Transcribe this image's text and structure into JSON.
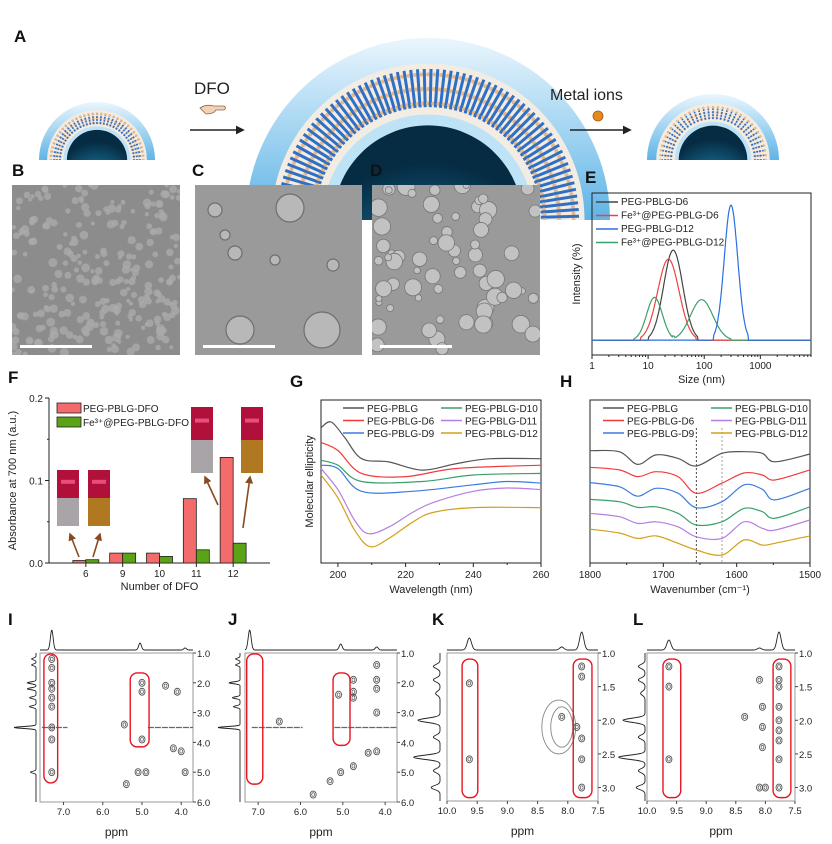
{
  "panel_labels": {
    "A": "A",
    "B": "B",
    "C": "C",
    "D": "D",
    "E": "E",
    "F": "F",
    "G": "G",
    "H": "H",
    "I": "I",
    "J": "J",
    "K": "K",
    "L": "L"
  },
  "schematic": {
    "dfo_label": "DFO",
    "metal_label": "Metal ions",
    "colors": {
      "shell": "#4aa3dc",
      "core": "#0b3d5c",
      "rods": "#2f6fc4",
      "metal_dot": "#e8891e"
    }
  },
  "chart_data": [
    {
      "panel": "E",
      "type": "line",
      "xscale": "log",
      "xlabel": "Size (nm)",
      "ylabel": "Intensity (%)",
      "xlim": [
        1,
        8000
      ],
      "ylim": [
        -3.3,
        32.7
      ],
      "xticks": [
        1,
        10,
        100,
        1000
      ],
      "xtick_labels": [
        "1",
        "10",
        "100",
        "1000"
      ],
      "legend_position": "top-left",
      "series": [
        {
          "name": "PEG-PBLG-D6",
          "color": "#444444",
          "peaks": [
            {
              "size_nm": 28,
              "intensity": 20,
              "width_decades": 0.17
            }
          ]
        },
        {
          "name": "Fe³⁺@PEG-PBLG-D6",
          "color": "#f04040",
          "peaks": [
            {
              "size_nm": 23,
              "intensity": 18,
              "width_decades": 0.19
            }
          ]
        },
        {
          "name": "PEG-PBLG-D12",
          "color": "#2a6fe0",
          "peaks": [
            {
              "size_nm": 300,
              "intensity": 30,
              "width_decades": 0.12
            }
          ]
        },
        {
          "name": "Fe³⁺@PEG-PBLG-D12",
          "color": "#3aa06a",
          "peaks": [
            {
              "size_nm": 13,
              "intensity": 9.5,
              "width_decades": 0.14
            },
            {
              "size_nm": 90,
              "intensity": 9,
              "width_decades": 0.2
            }
          ]
        }
      ]
    },
    {
      "panel": "F",
      "type": "bar",
      "xlabel": "Number of DFO",
      "ylabel": "Absorbance at 700 nm (a.u.)",
      "categories": [
        "6",
        "9",
        "10",
        "11",
        "12"
      ],
      "ylim": [
        0,
        0.2
      ],
      "yticks": [
        0.0,
        0.1,
        0.2
      ],
      "ytick_labels": [
        "0.0",
        "0.1",
        "0.2"
      ],
      "legend_position": "top-left",
      "series": [
        {
          "name": "PEG-PBLG-DFO",
          "color": "#f46b6b",
          "values": [
            0.003,
            0.012,
            0.012,
            0.078,
            0.128
          ]
        },
        {
          "name": "Fe³⁺@PEG-PBLG-DFO",
          "color": "#5aa317",
          "values": [
            0.004,
            0.012,
            0.008,
            0.016,
            0.024
          ]
        }
      ]
    },
    {
      "panel": "G",
      "type": "line",
      "xlabel": "Wavelength (nm)",
      "ylabel": "Molecular ellipticity",
      "xlim": [
        195,
        260
      ],
      "ylim": [
        0,
        100
      ],
      "xticks": [
        200,
        220,
        240,
        260
      ],
      "xtick_labels": [
        "200",
        "220",
        "240",
        "260"
      ],
      "legend_position": "top",
      "series": [
        {
          "name": "PEG-PBLG",
          "color": "#555555",
          "x": [
            195,
            198,
            202,
            207,
            215,
            225,
            235,
            245,
            260
          ],
          "y": [
            83,
            86.5,
            77,
            64,
            62,
            57,
            61,
            64,
            64
          ]
        },
        {
          "name": "PEG-PBLG-D6",
          "color": "#f03c3c",
          "x": [
            195,
            200,
            207,
            220,
            235,
            260
          ],
          "y": [
            74,
            69,
            55,
            53,
            58,
            60
          ]
        },
        {
          "name": "PEG-PBLG-D9",
          "color": "#3b7be0",
          "x": [
            195,
            200,
            207,
            222,
            240,
            250,
            260
          ],
          "y": [
            60,
            58,
            44,
            44,
            48,
            50,
            49
          ]
        },
        {
          "name": "PEG-PBLG-D10",
          "color": "#3aa06a",
          "x": [
            195,
            200,
            207,
            225,
            240,
            260
          ],
          "y": [
            63,
            60,
            50,
            50,
            54,
            55
          ]
        },
        {
          "name": "PEG-PBLG-D11",
          "color": "#b57fe0",
          "x": [
            195,
            200,
            205,
            209,
            215,
            222,
            228,
            240,
            250,
            260
          ],
          "y": [
            58,
            45,
            26,
            18,
            22,
            31,
            37,
            44,
            46,
            45
          ]
        },
        {
          "name": "PEG-PBLG-D12",
          "color": "#d4a017",
          "x": [
            195,
            200,
            205,
            209.5,
            215,
            222,
            228,
            240,
            260
          ],
          "y": [
            54,
            40,
            20,
            10,
            15,
            25,
            31,
            34,
            34
          ]
        }
      ]
    },
    {
      "panel": "H",
      "type": "line",
      "xlabel": "Wavenumber (cm⁻¹)",
      "ylabel": "",
      "xlim": [
        1800,
        1500
      ],
      "ylim": [
        0,
        100
      ],
      "xticks": [
        1800,
        1700,
        1600,
        1500
      ],
      "xtick_labels": [
        "1800",
        "1700",
        "1600",
        "1500"
      ],
      "reference_lines_x": [
        1655,
        1620
      ],
      "legend_position": "top",
      "series": [
        {
          "name": "PEG-PBLG",
          "color": "#555555",
          "x": [
            1800,
            1760,
            1735,
            1710,
            1680,
            1655,
            1620,
            1590,
            1565,
            1548,
            1500
          ],
          "y": [
            68.9,
            68.3,
            60.5,
            66.3,
            64.2,
            59.5,
            67.3,
            68.3,
            67.3,
            62.1,
            66.9
          ]
        },
        {
          "name": "PEG-PBLG-D6",
          "color": "#f03c3c",
          "x": [
            1800,
            1760,
            1735,
            1710,
            1680,
            1655,
            1620,
            1590,
            1565,
            1548,
            1500
          ],
          "y": [
            58.7,
            57.1,
            53,
            56,
            53,
            42.8,
            49,
            55.2,
            54,
            50.9,
            57.1
          ]
        },
        {
          "name": "PEG-PBLG-D9",
          "color": "#3b7be0",
          "x": [
            1800,
            1760,
            1735,
            1710,
            1680,
            1655,
            1620,
            1590,
            1565,
            1548,
            1500
          ],
          "y": [
            49.3,
            46.8,
            41,
            45.8,
            42.8,
            33.9,
            37.6,
            47.9,
            45.2,
            38.7,
            45.8
          ]
        },
        {
          "name": "PEG-PBLG-D10",
          "color": "#3aa06a",
          "x": [
            1800,
            1760,
            1735,
            1710,
            1680,
            1655,
            1620,
            1590,
            1565,
            1548,
            1500
          ],
          "y": [
            39,
            37.6,
            34.1,
            34.5,
            30.5,
            23.3,
            25.3,
            33.5,
            31.5,
            27.4,
            34.5
          ]
        },
        {
          "name": "PEG-PBLG-D11",
          "color": "#b57fe0",
          "x": [
            1800,
            1760,
            1735,
            1710,
            1680,
            1655,
            1620,
            1590,
            1565,
            1548,
            1500
          ],
          "y": [
            30.5,
            28.4,
            24.3,
            25.3,
            22.2,
            16.1,
            15.1,
            25.3,
            21.3,
            20.2,
            26.4
          ]
        },
        {
          "name": "PEG-PBLG-D12",
          "color": "#d4a017",
          "x": [
            1800,
            1760,
            1735,
            1710,
            1680,
            1655,
            1620,
            1590,
            1565,
            1548,
            1500
          ],
          "y": [
            20.8,
            18.4,
            15.1,
            16.6,
            12.1,
            8,
            4.9,
            14.1,
            11,
            12.1,
            16.6
          ]
        }
      ]
    },
    {
      "panel": "I",
      "type": "heatmap",
      "subtype": "2D NMR contour",
      "xlabel": "ppm",
      "xlim": [
        7.6,
        3.7
      ],
      "ylim": [
        6.0,
        1.0
      ],
      "xticks": [
        "7.0",
        "6.0",
        "5.0",
        "4.0"
      ],
      "yticks": [
        "1.0",
        "2.0",
        "3.0",
        "4.0",
        "5.0",
        "6.0"
      ],
      "highlight_boxes": [
        {
          "x": [
            7.5,
            7.15
          ],
          "y": [
            1.03,
            5.36
          ]
        },
        {
          "x": [
            5.3,
            4.82
          ],
          "y": [
            1.67,
            4.15
          ]
        }
      ],
      "top_projection_peaks": [
        [
          7.3,
          1
        ],
        [
          5.05,
          0.35
        ],
        [
          3.9,
          0.1
        ]
      ],
      "side_projection_peaks": [
        [
          1.2,
          0.2
        ],
        [
          1.4,
          0.2
        ],
        [
          2.0,
          0.4
        ],
        [
          2.2,
          0.4
        ],
        [
          2.5,
          0.3
        ],
        [
          2.8,
          0.3
        ],
        [
          3.5,
          1
        ],
        [
          5.0,
          0.25
        ]
      ],
      "cross_peaks": [
        [
          7.3,
          1.2
        ],
        [
          7.3,
          1.5
        ],
        [
          7.3,
          2.0
        ],
        [
          7.3,
          2.2
        ],
        [
          7.3,
          2.5
        ],
        [
          7.3,
          2.8
        ],
        [
          7.3,
          3.5
        ],
        [
          7.3,
          3.9
        ],
        [
          7.3,
          5.0
        ],
        [
          5.0,
          2.0
        ],
        [
          5.0,
          2.3
        ],
        [
          5.0,
          3.9
        ],
        [
          4.0,
          4.3
        ],
        [
          4.2,
          4.2
        ],
        [
          4.9,
          5.0
        ],
        [
          5.1,
          5.0
        ],
        [
          5.4,
          5.4
        ],
        [
          3.9,
          5.0
        ],
        [
          4.4,
          2.1
        ],
        [
          4.1,
          2.3
        ],
        [
          5.45,
          3.4
        ]
      ],
      "noise_ridges": [
        {
          "y": 3.5,
          "x": [
            7.55,
            6.9
          ]
        },
        {
          "y": 3.5,
          "x": [
            4.85,
            3.7
          ]
        }
      ]
    },
    {
      "panel": "J",
      "type": "heatmap",
      "subtype": "2D NMR contour",
      "xlabel": "ppm",
      "xlim": [
        7.31,
        3.72
      ],
      "ylim": [
        6.0,
        1.0
      ],
      "xticks": [
        "7.0",
        "6.0",
        "5.0",
        "4.0"
      ],
      "yticks": [
        "1.0",
        "2.0",
        "3.0",
        "4.0",
        "5.0",
        "6.0"
      ],
      "highlight_boxes": [
        {
          "x": [
            7.27,
            6.89
          ],
          "y": [
            1.03,
            5.4
          ]
        },
        {
          "x": [
            5.23,
            4.83
          ],
          "y": [
            1.67,
            4.1
          ]
        }
      ],
      "top_projection_peaks": [
        [
          7.2,
          1
        ],
        [
          5.05,
          0.3
        ],
        [
          4.2,
          0.15
        ]
      ],
      "side_projection_peaks": [
        [
          1.2,
          0.2
        ],
        [
          1.4,
          0.2
        ],
        [
          2.0,
          0.5
        ],
        [
          2.5,
          0.35
        ],
        [
          2.8,
          0.3
        ],
        [
          3.5,
          1
        ]
      ],
      "cross_peaks": [
        [
          5.1,
          2.4
        ],
        [
          4.75,
          1.9
        ],
        [
          4.75,
          2.3
        ],
        [
          4.75,
          2.5
        ],
        [
          4.2,
          1.4
        ],
        [
          4.2,
          1.9
        ],
        [
          4.2,
          2.2
        ],
        [
          4.2,
          3.0
        ],
        [
          4.2,
          4.3
        ],
        [
          4.4,
          4.35
        ],
        [
          5.05,
          5.0
        ],
        [
          5.3,
          5.3
        ],
        [
          5.7,
          5.75
        ],
        [
          4.75,
          4.8
        ],
        [
          6.5,
          3.3
        ]
      ],
      "noise_ridges": [
        {
          "y": 3.5,
          "x": [
            7.15,
            5.95
          ]
        },
        {
          "y": 3.5,
          "x": [
            5.2,
            3.72
          ]
        }
      ]
    },
    {
      "panel": "K",
      "type": "heatmap",
      "subtype": "2D NMR contour",
      "xlabel": "ppm",
      "xlim": [
        10.0,
        7.5
      ],
      "ylim": [
        3.2,
        1.0
      ],
      "xticks": [
        "10.0",
        "9.5",
        "9.0",
        "8.5",
        "8.0",
        "7.5"
      ],
      "yticks": [
        "1.0",
        "1.5",
        "2.0",
        "2.5",
        "3.0"
      ],
      "highlight_boxes": [
        {
          "x": [
            9.75,
            9.49
          ],
          "y": [
            1.09,
            3.15
          ]
        },
        {
          "x": [
            7.91,
            7.6
          ],
          "y": [
            1.09,
            3.15
          ]
        }
      ],
      "top_projection_peaks": [
        [
          9.63,
          0.6
        ],
        [
          8.1,
          0.15
        ],
        [
          7.77,
          0.9
        ]
      ],
      "side_projection_peaks": [
        [
          1.2,
          0.3
        ],
        [
          1.4,
          0.3
        ],
        [
          1.6,
          0.2
        ],
        [
          2.0,
          1
        ],
        [
          2.25,
          0.3
        ],
        [
          2.55,
          1.2
        ],
        [
          2.75,
          0.3
        ],
        [
          3.0,
          0.4
        ]
      ],
      "cross_peaks": [
        [
          9.63,
          1.45
        ],
        [
          9.63,
          2.58
        ],
        [
          7.77,
          1.35
        ],
        [
          7.77,
          2.27
        ],
        [
          7.77,
          2.58
        ],
        [
          7.77,
          3.0
        ],
        [
          8.1,
          1.95
        ],
        [
          7.85,
          2.1
        ],
        [
          7.77,
          1.2
        ]
      ],
      "broad_regions": [
        {
          "x": 8.15,
          "y": 2.1,
          "rx": 0.28,
          "ry": 0.4
        }
      ]
    },
    {
      "panel": "L",
      "type": "heatmap",
      "subtype": "2D NMR contour",
      "xlabel": "ppm",
      "xlim": [
        10.0,
        7.5
      ],
      "ylim": [
        3.2,
        1.0
      ],
      "xticks": [
        "10.0",
        "9.5",
        "9.0",
        "8.5",
        "8.0",
        "7.5"
      ],
      "yticks": [
        "1.0",
        "1.5",
        "2.0",
        "2.5",
        "3.0"
      ],
      "highlight_boxes": [
        {
          "x": [
            9.73,
            9.43
          ],
          "y": [
            1.09,
            3.15
          ]
        },
        {
          "x": [
            7.87,
            7.57
          ],
          "y": [
            1.09,
            3.15
          ]
        }
      ],
      "top_projection_peaks": [
        [
          9.63,
          0.5
        ],
        [
          8.1,
          0.1
        ],
        [
          7.77,
          0.9
        ]
      ],
      "side_projection_peaks": [
        [
          1.2,
          0.3
        ],
        [
          1.4,
          0.3
        ],
        [
          1.6,
          0.2
        ],
        [
          2.0,
          1
        ],
        [
          2.25,
          0.3
        ],
        [
          2.55,
          1.2
        ],
        [
          2.75,
          0.3
        ],
        [
          3.0,
          0.4
        ]
      ],
      "cross_peaks": [
        [
          9.63,
          1.2
        ],
        [
          9.63,
          1.5
        ],
        [
          9.63,
          2.58
        ],
        [
          7.77,
          1.2
        ],
        [
          7.77,
          1.4
        ],
        [
          7.77,
          1.5
        ],
        [
          7.77,
          1.8
        ],
        [
          7.77,
          2.0
        ],
        [
          7.77,
          2.15
        ],
        [
          7.77,
          2.3
        ],
        [
          7.77,
          2.58
        ],
        [
          7.77,
          3.0
        ],
        [
          8.1,
          1.4
        ],
        [
          8.05,
          1.8
        ],
        [
          8.05,
          2.1
        ],
        [
          8.05,
          2.4
        ],
        [
          8.1,
          3.0
        ],
        [
          8.0,
          3.0
        ],
        [
          8.35,
          1.95
        ]
      ]
    }
  ]
}
